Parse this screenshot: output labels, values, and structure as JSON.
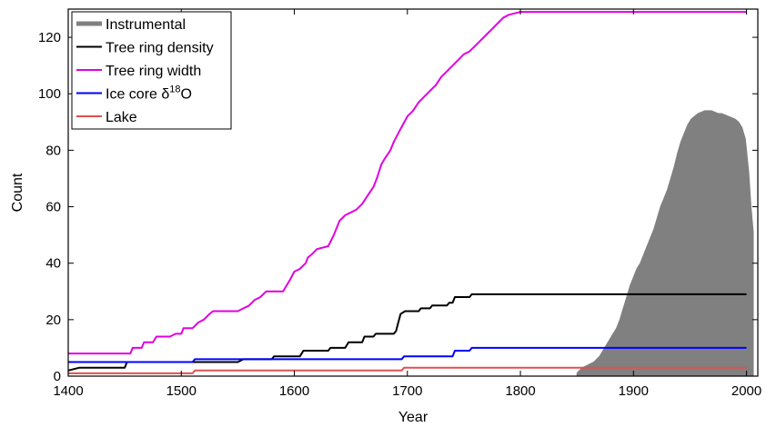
{
  "chart_data": {
    "type": "area",
    "xlabel": "Year",
    "ylabel": "Count",
    "xlim": [
      1400,
      2010
    ],
    "ylim": [
      0,
      130
    ],
    "xticks": [
      "1400",
      "1500",
      "1600",
      "1700",
      "1800",
      "1900",
      "2000"
    ],
    "yticks": [
      "0",
      "20",
      "40",
      "60",
      "80",
      "100",
      "120"
    ],
    "legend_position": "top-left",
    "grid": false,
    "series": [
      {
        "key": "instrumental",
        "name": "Instrumental",
        "kind": "area",
        "color": "#808080",
        "points": [
          [
            1850,
            1
          ],
          [
            1852,
            2
          ],
          [
            1855,
            3
          ],
          [
            1860,
            4
          ],
          [
            1865,
            5
          ],
          [
            1870,
            7
          ],
          [
            1873,
            9
          ],
          [
            1876,
            11
          ],
          [
            1879,
            13
          ],
          [
            1882,
            15
          ],
          [
            1885,
            17
          ],
          [
            1888,
            20
          ],
          [
            1891,
            24
          ],
          [
            1894,
            28
          ],
          [
            1897,
            32
          ],
          [
            1900,
            35
          ],
          [
            1903,
            38
          ],
          [
            1906,
            40
          ],
          [
            1909,
            43
          ],
          [
            1912,
            46
          ],
          [
            1915,
            49
          ],
          [
            1918,
            52
          ],
          [
            1921,
            56
          ],
          [
            1924,
            60
          ],
          [
            1927,
            63
          ],
          [
            1930,
            66
          ],
          [
            1933,
            70
          ],
          [
            1936,
            74
          ],
          [
            1939,
            79
          ],
          [
            1942,
            83
          ],
          [
            1945,
            86
          ],
          [
            1948,
            89
          ],
          [
            1951,
            91
          ],
          [
            1954,
            92
          ],
          [
            1957,
            93
          ],
          [
            1960,
            93.5
          ],
          [
            1963,
            94
          ],
          [
            1966,
            94
          ],
          [
            1969,
            94
          ],
          [
            1972,
            93.5
          ],
          [
            1975,
            93
          ],
          [
            1978,
            93
          ],
          [
            1981,
            92.5
          ],
          [
            1984,
            92
          ],
          [
            1987,
            91.5
          ],
          [
            1990,
            91
          ],
          [
            1993,
            90
          ],
          [
            1996,
            88
          ],
          [
            1999,
            84
          ],
          [
            2002,
            72
          ],
          [
            2004,
            60
          ],
          [
            2006,
            51
          ],
          [
            2006,
            0
          ],
          [
            1850,
            0
          ]
        ]
      },
      {
        "key": "tree_density",
        "name": "Tree ring density",
        "kind": "step",
        "color": "#000000",
        "points": [
          [
            1400,
            2
          ],
          [
            1410,
            3
          ],
          [
            1420,
            3
          ],
          [
            1450,
            3
          ],
          [
            1452,
            5
          ],
          [
            1500,
            5
          ],
          [
            1550,
            5
          ],
          [
            1555,
            6
          ],
          [
            1580,
            6
          ],
          [
            1582,
            7
          ],
          [
            1605,
            7
          ],
          [
            1608,
            9
          ],
          [
            1630,
            9
          ],
          [
            1632,
            10
          ],
          [
            1645,
            10
          ],
          [
            1648,
            12
          ],
          [
            1660,
            12
          ],
          [
            1662,
            14
          ],
          [
            1670,
            14
          ],
          [
            1672,
            15
          ],
          [
            1688,
            15
          ],
          [
            1690,
            16
          ],
          [
            1692,
            19
          ],
          [
            1694,
            22
          ],
          [
            1698,
            23
          ],
          [
            1710,
            23
          ],
          [
            1712,
            24
          ],
          [
            1720,
            24
          ],
          [
            1722,
            25
          ],
          [
            1735,
            25
          ],
          [
            1737,
            26
          ],
          [
            1740,
            26
          ],
          [
            1742,
            28
          ],
          [
            1755,
            28
          ],
          [
            1757,
            29
          ],
          [
            2000,
            29
          ]
        ]
      },
      {
        "key": "tree_width",
        "name": "Tree ring width",
        "kind": "step",
        "color": "#e000e0",
        "points": [
          [
            1400,
            8
          ],
          [
            1455,
            8
          ],
          [
            1457,
            10
          ],
          [
            1465,
            10
          ],
          [
            1467,
            12
          ],
          [
            1475,
            12
          ],
          [
            1478,
            14
          ],
          [
            1490,
            14
          ],
          [
            1495,
            15
          ],
          [
            1500,
            15
          ],
          [
            1502,
            17
          ],
          [
            1510,
            17
          ],
          [
            1515,
            19
          ],
          [
            1520,
            20
          ],
          [
            1525,
            22
          ],
          [
            1528,
            23
          ],
          [
            1550,
            23
          ],
          [
            1555,
            24
          ],
          [
            1560,
            25
          ],
          [
            1565,
            27
          ],
          [
            1570,
            28
          ],
          [
            1575,
            30
          ],
          [
            1590,
            30
          ],
          [
            1593,
            32
          ],
          [
            1596,
            34
          ],
          [
            1600,
            37
          ],
          [
            1605,
            38
          ],
          [
            1610,
            40
          ],
          [
            1612,
            42
          ],
          [
            1615,
            43
          ],
          [
            1620,
            45
          ],
          [
            1630,
            46
          ],
          [
            1635,
            50
          ],
          [
            1640,
            55
          ],
          [
            1645,
            57
          ],
          [
            1650,
            58
          ],
          [
            1655,
            59
          ],
          [
            1660,
            61
          ],
          [
            1665,
            64
          ],
          [
            1670,
            67
          ],
          [
            1673,
            70
          ],
          [
            1677,
            75
          ],
          [
            1680,
            77
          ],
          [
            1685,
            80
          ],
          [
            1688,
            83
          ],
          [
            1692,
            86
          ],
          [
            1696,
            89
          ],
          [
            1700,
            92
          ],
          [
            1705,
            94
          ],
          [
            1710,
            97
          ],
          [
            1715,
            99
          ],
          [
            1720,
            101
          ],
          [
            1725,
            103
          ],
          [
            1730,
            106
          ],
          [
            1735,
            108
          ],
          [
            1740,
            110
          ],
          [
            1745,
            112
          ],
          [
            1750,
            114
          ],
          [
            1755,
            115
          ],
          [
            1760,
            117
          ],
          [
            1765,
            119
          ],
          [
            1770,
            121
          ],
          [
            1775,
            123
          ],
          [
            1780,
            125
          ],
          [
            1785,
            127
          ],
          [
            1790,
            128
          ],
          [
            1795,
            128.5
          ],
          [
            1800,
            129
          ],
          [
            2000,
            129
          ]
        ]
      },
      {
        "key": "ice_core",
        "name": "Ice core δ18O",
        "name_parts": {
          "main": "Ice core δ",
          "sup": "18",
          "end": "O"
        },
        "kind": "step",
        "color": "#0000ff",
        "points": [
          [
            1400,
            5
          ],
          [
            1510,
            5
          ],
          [
            1512,
            6
          ],
          [
            1695,
            6
          ],
          [
            1697,
            7
          ],
          [
            1740,
            7
          ],
          [
            1742,
            9
          ],
          [
            1755,
            9
          ],
          [
            1757,
            10
          ],
          [
            2000,
            10
          ]
        ]
      },
      {
        "key": "lake",
        "name": "Lake",
        "kind": "step",
        "color": "#e05050",
        "points": [
          [
            1400,
            1
          ],
          [
            1510,
            1
          ],
          [
            1512,
            2
          ],
          [
            1695,
            2
          ],
          [
            1697,
            3
          ],
          [
            2000,
            3
          ]
        ]
      }
    ]
  }
}
